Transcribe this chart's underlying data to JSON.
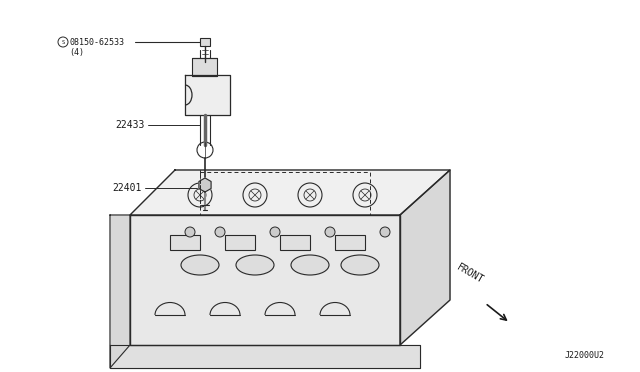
{
  "bg_color": "#ffffff",
  "fig_width": 6.4,
  "fig_height": 3.72,
  "dpi": 100,
  "labels": {
    "part1_num": "08150-62533",
    "part1_sub": "(4)",
    "part2_num": "22433",
    "part3_num": "22401",
    "front_label": "FRONT",
    "diagram_id": "J22000U2"
  },
  "text_color": "#1a1a1a",
  "line_color": "#2a2a2a"
}
